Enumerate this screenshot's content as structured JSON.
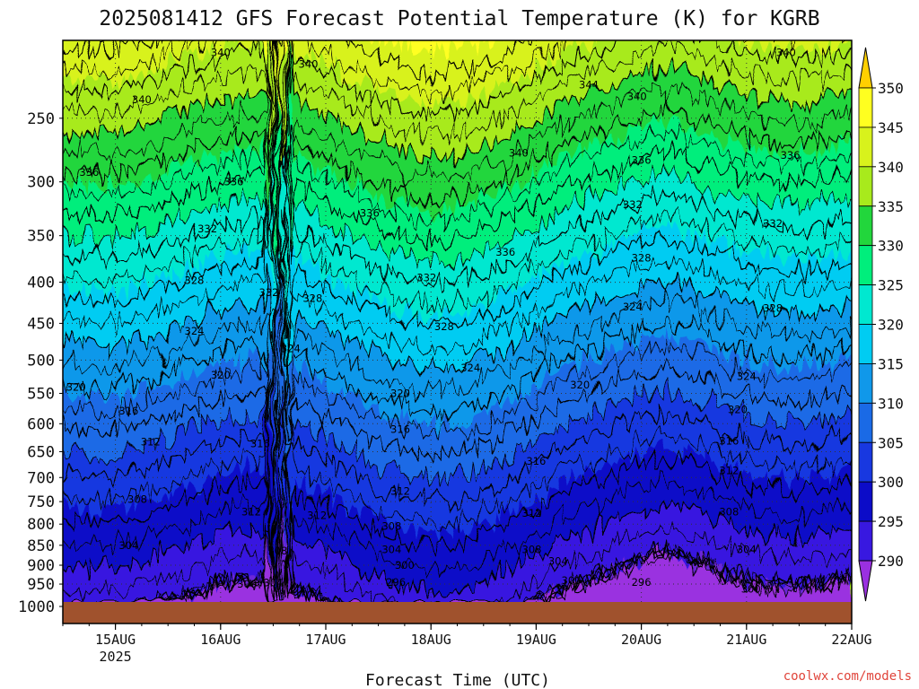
{
  "chart_data": {
    "type": "heatmap",
    "title": "2025081412 GFS Forecast Potential Temperature (K) for KGRB",
    "xlabel": "Forecast Time (UTC)",
    "ylabel": "",
    "x_ticks": [
      "15AUG",
      "16AUG",
      "17AUG",
      "18AUG",
      "19AUG",
      "20AUG",
      "21AUG",
      "22AUG"
    ],
    "x_year_label": "2025",
    "x_range": [
      "2025-08-14T12",
      "2025-08-22T00"
    ],
    "y_ticks": [
      250,
      300,
      350,
      400,
      450,
      500,
      550,
      600,
      650,
      700,
      750,
      800,
      850,
      900,
      950,
      1000
    ],
    "y_range": [
      200,
      1000
    ],
    "y_axis_inverted": true,
    "y_scale": "log",
    "colorbar": {
      "labels": [
        350,
        345,
        340,
        335,
        330,
        325,
        320,
        315,
        310,
        305,
        300,
        295,
        290
      ],
      "colors": [
        "#ffd000",
        "#ffff20",
        "#d8f21c",
        "#a8ea1c",
        "#22d63c",
        "#00ee7c",
        "#00e8d0",
        "#00ccf2",
        "#1098ea",
        "#1a6ae6",
        "#1838e0",
        "#0c0cc8",
        "#3818e0",
        "#6c26d8",
        "#9a30e0"
      ],
      "placement": "right"
    },
    "contour_interval_K": 4,
    "contour_labels": [
      {
        "v": 340,
        "t": "2025-08-16T00",
        "p": 207
      },
      {
        "v": 340,
        "t": "2025-08-16T20",
        "p": 214
      },
      {
        "v": 340,
        "t": "2025-08-15T06",
        "p": 237
      },
      {
        "v": 340,
        "t": "2025-08-18T20",
        "p": 276
      },
      {
        "v": 340,
        "t": "2025-08-19T23",
        "p": 235
      },
      {
        "v": 340,
        "t": "2025-08-21T09",
        "p": 207
      },
      {
        "v": 344,
        "t": "2025-08-19T12",
        "p": 227
      },
      {
        "v": 336,
        "t": "2025-08-14T18",
        "p": 292
      },
      {
        "v": 336,
        "t": "2025-08-16T03",
        "p": 300
      },
      {
        "v": 336,
        "t": "2025-08-17T10",
        "p": 328
      },
      {
        "v": 336,
        "t": "2025-08-18T17",
        "p": 367
      },
      {
        "v": 336,
        "t": "2025-08-20T00",
        "p": 282
      },
      {
        "v": 336,
        "t": "2025-08-21T10",
        "p": 278
      },
      {
        "v": 332,
        "t": "2025-08-15T21",
        "p": 343
      },
      {
        "v": 332,
        "t": "2025-08-16T11",
        "p": 412
      },
      {
        "v": 332,
        "t": "2025-08-17T23",
        "p": 395
      },
      {
        "v": 332,
        "t": "2025-08-19T22",
        "p": 320
      },
      {
        "v": 332,
        "t": "2025-08-21T06",
        "p": 338
      },
      {
        "v": 328,
        "t": "2025-08-15T18",
        "p": 398
      },
      {
        "v": 328,
        "t": "2025-08-16T21",
        "p": 419
      },
      {
        "v": 328,
        "t": "2025-08-18T03",
        "p": 454
      },
      {
        "v": 328,
        "t": "2025-08-20T00",
        "p": 373
      },
      {
        "v": 328,
        "t": "2025-08-21T06",
        "p": 431
      },
      {
        "v": 324,
        "t": "2025-08-15T18",
        "p": 460
      },
      {
        "v": 324,
        "t": "2025-08-16T16",
        "p": 484
      },
      {
        "v": 324,
        "t": "2025-08-18T09",
        "p": 511
      },
      {
        "v": 324,
        "t": "2025-08-19T22",
        "p": 429
      },
      {
        "v": 324,
        "t": "2025-08-21T00",
        "p": 524
      },
      {
        "v": 320,
        "t": "2025-08-14T15",
        "p": 540
      },
      {
        "v": 320,
        "t": "2025-08-16T00",
        "p": 522
      },
      {
        "v": 320,
        "t": "2025-08-17T17",
        "p": 550
      },
      {
        "v": 320,
        "t": "2025-08-19T10",
        "p": 537
      },
      {
        "v": 320,
        "t": "2025-08-20T22",
        "p": 576
      },
      {
        "v": 316,
        "t": "2025-08-15T03",
        "p": 578
      },
      {
        "v": 316,
        "t": "2025-08-16T09",
        "p": 635
      },
      {
        "v": 316,
        "t": "2025-08-17T17",
        "p": 610
      },
      {
        "v": 316,
        "t": "2025-08-19T00",
        "p": 668
      },
      {
        "v": 316,
        "t": "2025-08-20T20",
        "p": 630
      },
      {
        "v": 312,
        "t": "2025-08-15T08",
        "p": 632
      },
      {
        "v": 312,
        "t": "2025-08-17T17",
        "p": 728
      },
      {
        "v": 312,
        "t": "2025-08-18T23",
        "p": 775
      },
      {
        "v": 312,
        "t": "2025-08-20T20",
        "p": 686
      },
      {
        "v": 312,
        "t": "2025-08-16T07",
        "p": 772
      },
      {
        "v": 312,
        "t": "2025-08-16T22",
        "p": 780
      },
      {
        "v": 308,
        "t": "2025-08-15T05",
        "p": 745
      },
      {
        "v": 308,
        "t": "2025-08-16T13",
        "p": 864
      },
      {
        "v": 308,
        "t": "2025-08-17T15",
        "p": 805
      },
      {
        "v": 308,
        "t": "2025-08-18T23",
        "p": 860
      },
      {
        "v": 308,
        "t": "2025-08-20T20",
        "p": 772
      },
      {
        "v": 304,
        "t": "2025-08-15T03",
        "p": 850
      },
      {
        "v": 304,
        "t": "2025-08-16T12",
        "p": 946
      },
      {
        "v": 304,
        "t": "2025-08-17T15",
        "p": 860
      },
      {
        "v": 304,
        "t": "2025-08-19T05",
        "p": 890
      },
      {
        "v": 304,
        "t": "2025-08-21T00",
        "p": 860
      },
      {
        "v": 300,
        "t": "2025-08-16T06",
        "p": 950
      },
      {
        "v": 300,
        "t": "2025-08-17T18",
        "p": 900
      },
      {
        "v": 300,
        "t": "2025-08-19T08",
        "p": 940
      },
      {
        "v": 300,
        "t": "2025-08-21T01",
        "p": 964
      },
      {
        "v": 296,
        "t": "2025-08-17T16",
        "p": 945
      },
      {
        "v": 296,
        "t": "2025-08-20T00",
        "p": 945
      }
    ]
  },
  "credit": "coolwx.com/models"
}
